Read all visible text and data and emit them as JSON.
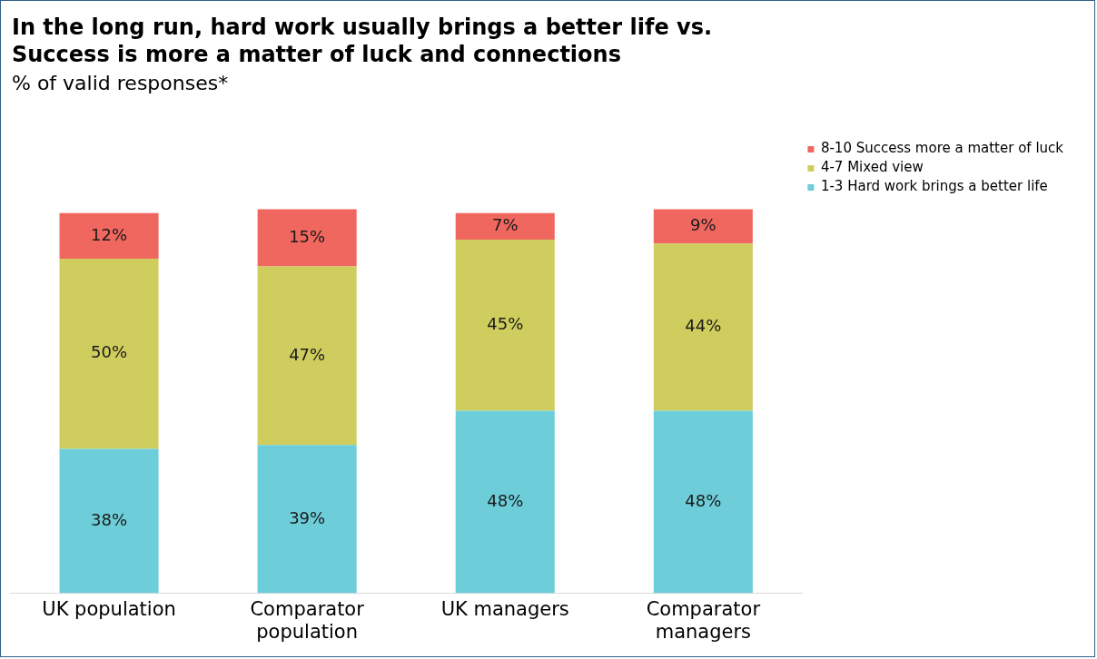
{
  "chart_data": {
    "type": "bar",
    "title": "In the long run, hard work usually brings a better life vs. Success is more a matter of luck and connections",
    "subtitle": "% of valid responses*",
    "categories": [
      "UK population",
      "Comparator population",
      "UK managers",
      "Comparator managers"
    ],
    "stacked": true,
    "legend": "top right",
    "series": [
      {
        "name": "1-3 Hard work brings a better life",
        "color": "#6dcdd9",
        "values": [
          38,
          39,
          48,
          48
        ],
        "value_labels": [
          "38%",
          "39%",
          "48%",
          "48%"
        ]
      },
      {
        "name": "4-7 Mixed view",
        "color": "#cfcd5e",
        "values": [
          50,
          47,
          45,
          44
        ],
        "value_labels": [
          "50%",
          "47%",
          "45%",
          "44%"
        ]
      },
      {
        "name": "8-10 Success more a matter of luck",
        "color": "#f0675f",
        "values": [
          12,
          15,
          7,
          9
        ],
        "value_labels": [
          "12%",
          "15%",
          "7%",
          "9%"
        ]
      }
    ]
  }
}
